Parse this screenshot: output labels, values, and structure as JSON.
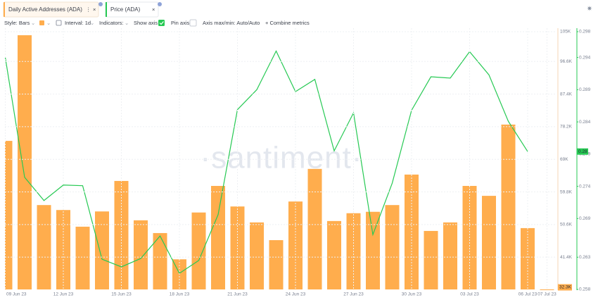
{
  "tabs": [
    "Daily Active Addresses (ADA)",
    "Price (ADA)"
  ],
  "toolbar": {
    "style": "Style: Bars",
    "interval": "Interval: 1d",
    "indicators": "Indicators:",
    "show_axis": "Show axis",
    "pin_axis": "Pin axis",
    "axis_minmax": "Axis max/min: Auto/Auto",
    "combine": "+ Combine metrics"
  },
  "chart_data": {
    "type": "bar_line",
    "watermark": "·santiment·",
    "categories": [
      "09 Jun 23",
      null,
      null,
      "12 Jun 23",
      null,
      null,
      "15 Jun 23",
      null,
      null,
      "18 Jun 23",
      null,
      null,
      "21 Jun 23",
      null,
      null,
      "24 Jun 23",
      null,
      null,
      "27 Jun 23",
      null,
      null,
      "30 Jun 23",
      null,
      null,
      "03 Jul 23",
      null,
      null,
      "06 Jul 23",
      "07 Jul 23"
    ],
    "series": [
      {
        "name": "Daily Active Addresses (ADA)",
        "type": "bar",
        "color": "#ffad4d",
        "axis": "y",
        "values": [
          74200,
          104000,
          56100,
          54700,
          50000,
          54300,
          62900,
          51800,
          48200,
          40800,
          54000,
          61500,
          55700,
          51200,
          46200,
          57100,
          66300,
          51600,
          53800,
          54200,
          56100,
          64700,
          48800,
          51200,
          61500,
          58700,
          78800,
          49600,
          32300
        ],
        "value_labels": [
          null,
          null,
          null,
          null,
          null,
          null,
          null,
          null,
          null,
          null,
          null,
          null,
          null,
          null,
          null,
          null,
          null,
          null,
          null,
          null,
          null,
          null,
          null,
          null,
          null,
          null,
          null,
          null,
          "32.3K"
        ]
      },
      {
        "name": "Price (ADA)",
        "type": "line",
        "color": "#26c953",
        "axis": "y2",
        "values": [
          0.294,
          0.2754,
          0.2718,
          0.2742,
          0.2741,
          0.2627,
          0.2615,
          0.2628,
          0.2663,
          0.2605,
          0.2625,
          0.2696,
          0.2859,
          0.289,
          0.295,
          0.2887,
          0.2906,
          0.2795,
          0.2854,
          0.2665,
          0.2745,
          0.2858,
          0.291,
          0.2908,
          0.2949,
          0.2913,
          0.2841,
          0.2794,
          null
        ],
        "value_labels": [
          null,
          null,
          null,
          null,
          null,
          null,
          null,
          null,
          null,
          null,
          null,
          null,
          null,
          null,
          null,
          null,
          null,
          null,
          null,
          null,
          null,
          null,
          null,
          null,
          null,
          null,
          null,
          "0.28",
          null
        ]
      }
    ],
    "ylim": [
      32300,
      105000
    ],
    "yticks": [
      {
        "value": 105000,
        "label": "105K"
      },
      {
        "value": 96600,
        "label": "96.6K"
      },
      {
        "value": 87400,
        "label": "87.4K"
      },
      {
        "value": 78200,
        "label": "78.2K"
      },
      {
        "value": 69000,
        "label": "69K"
      },
      {
        "value": 59800,
        "label": "59.8K"
      },
      {
        "value": 50600,
        "label": "50.6K"
      },
      {
        "value": 41400,
        "label": "41.4K"
      }
    ],
    "y2lim": [
      0.258,
      0.298
    ],
    "y2ticks": [
      0.298,
      0.294,
      0.289,
      0.284,
      0.279,
      0.274,
      0.269,
      0.263,
      0.258
    ],
    "grid": true
  }
}
